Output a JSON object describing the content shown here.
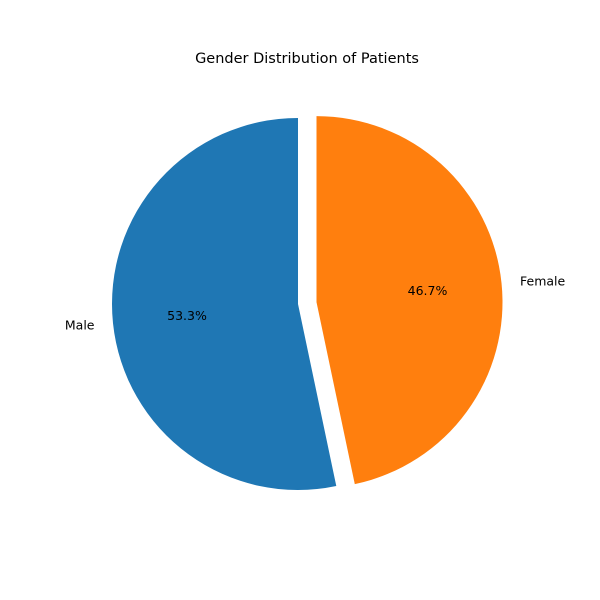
{
  "chart_data": {
    "type": "pie",
    "title": "Gender Distribution of Patients",
    "categories": [
      "Male",
      "Female"
    ],
    "values": [
      53.3,
      46.7
    ],
    "value_labels": [
      "53.3%",
      "46.7%"
    ],
    "colors": [
      "#1f77b4",
      "#ff7f0e"
    ],
    "explode": [
      0,
      0.1
    ],
    "start_angle_degrees": 90,
    "direction": "counterclockwise",
    "legend": "none"
  }
}
